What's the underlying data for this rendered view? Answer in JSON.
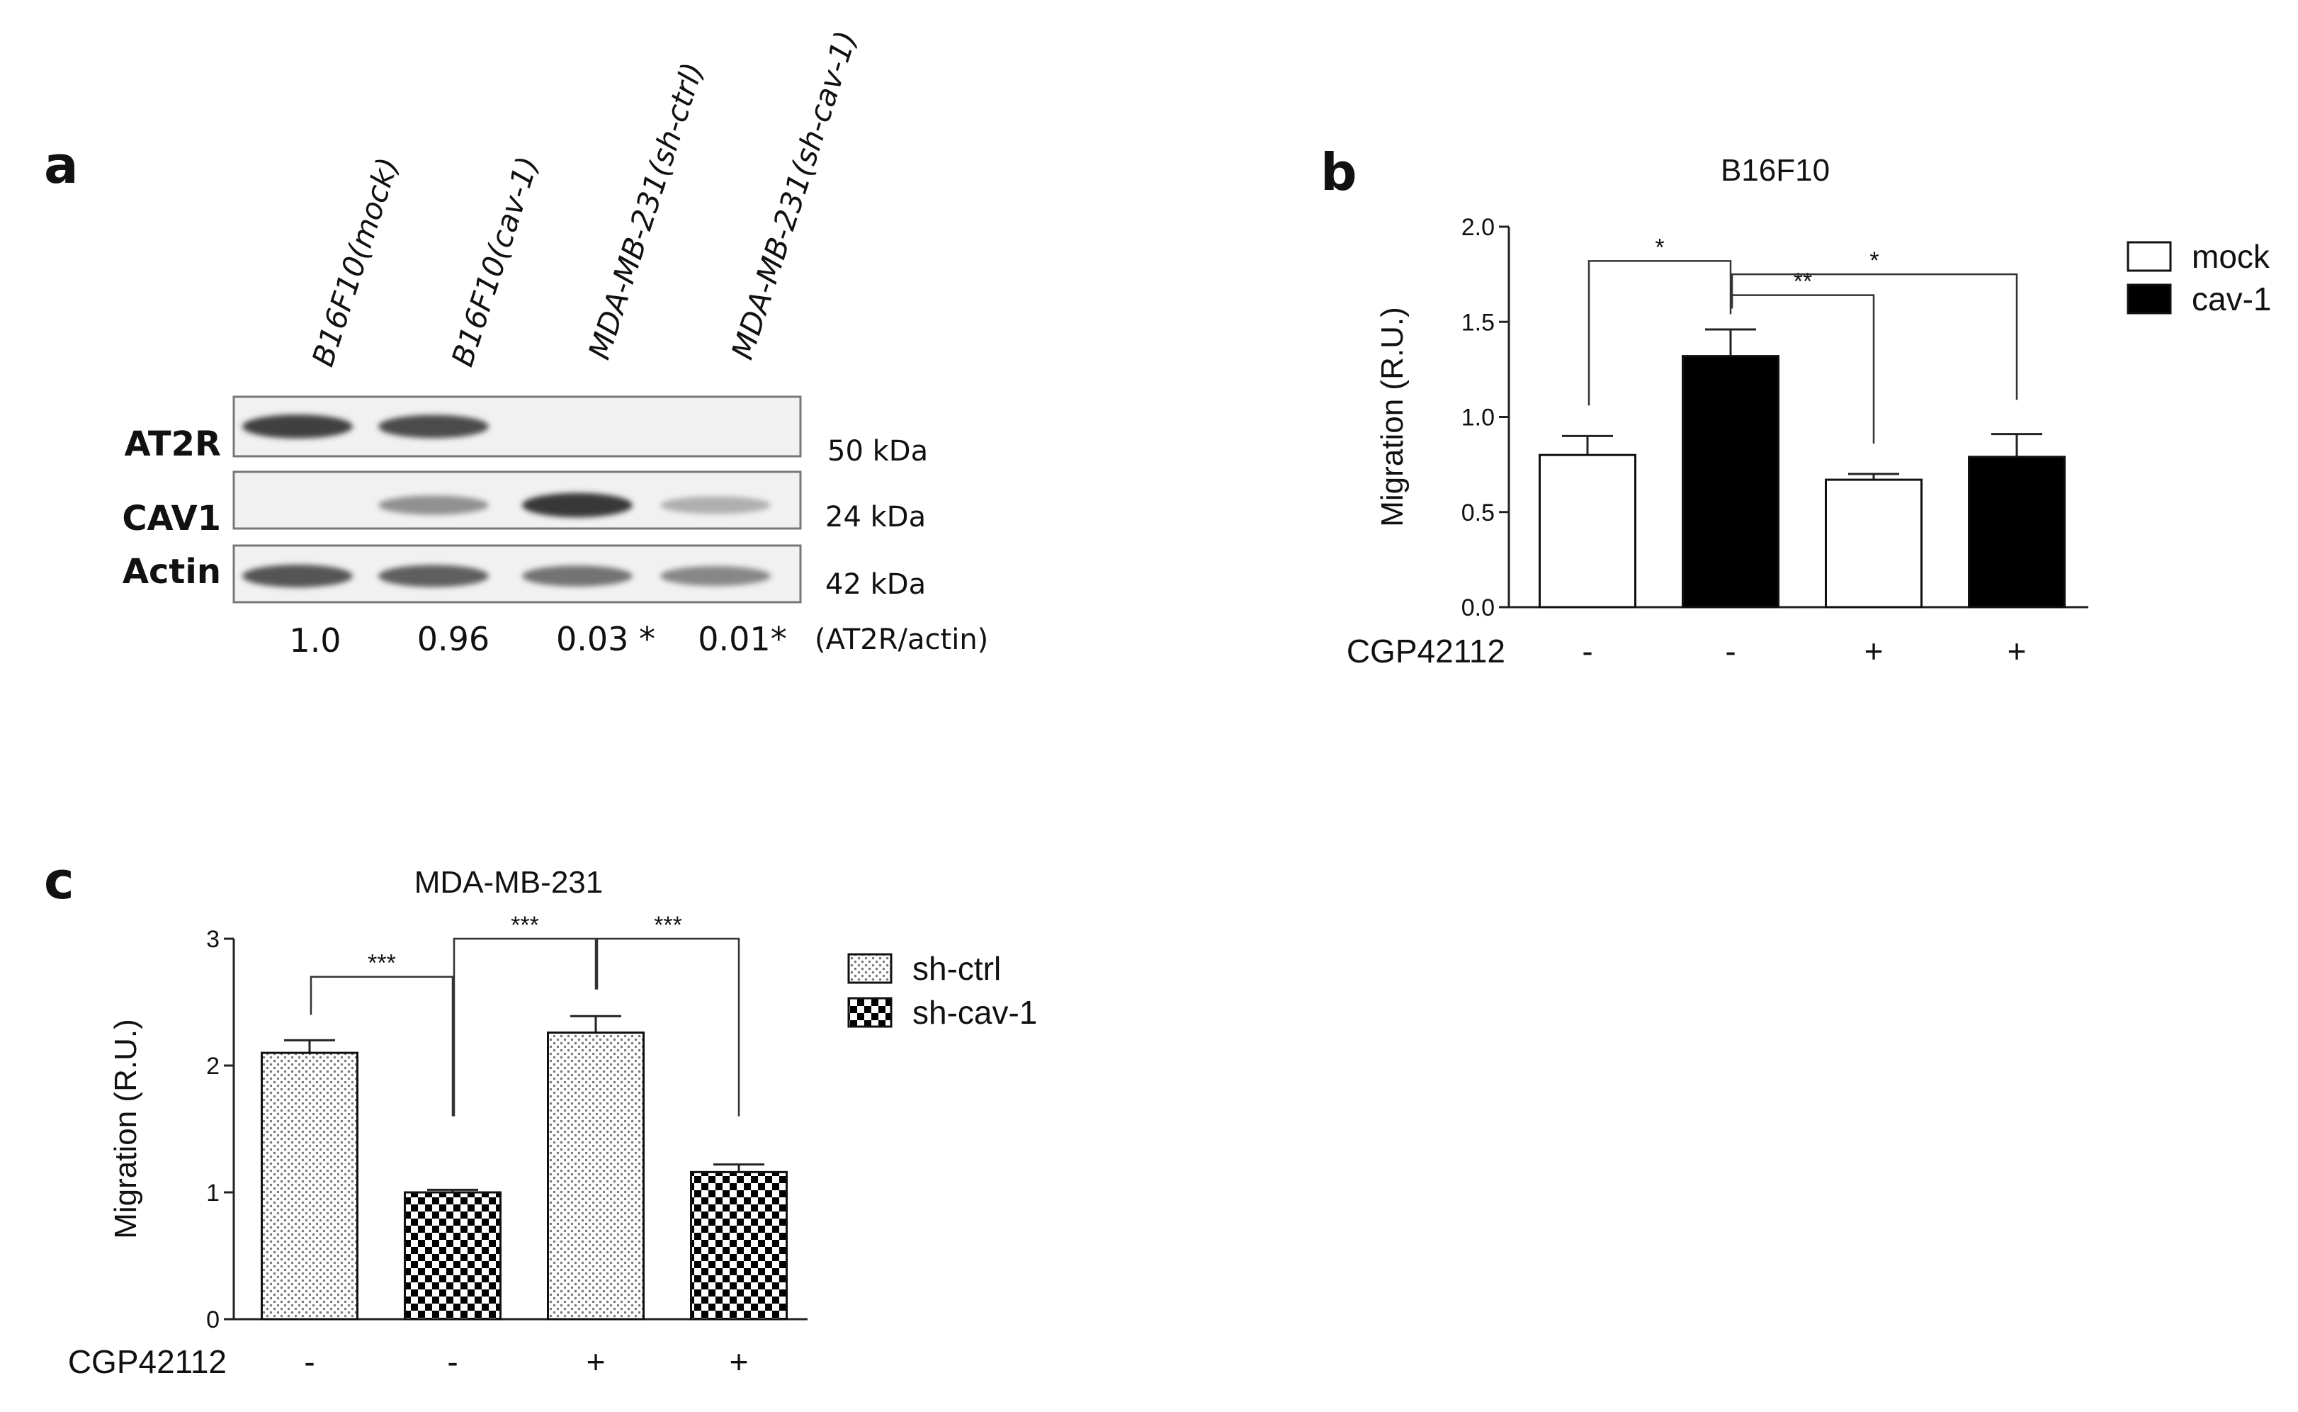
{
  "panel_a": {
    "letter": "a",
    "lane_labels": [
      "B16F10(mock)",
      "B16F10(cav-1)",
      "MDA-MB-231(sh-ctrl)",
      "MDA-MB-231(sh-cav-1)"
    ],
    "rows": [
      {
        "label": "AT2R",
        "kda": "50 kDa",
        "bands": [
          0.85,
          0.8,
          0,
          0
        ]
      },
      {
        "label": "CAV1",
        "kda": "24 kDa",
        "bands": [
          0,
          0.45,
          0.9,
          0.3
        ]
      },
      {
        "label": "Actin",
        "kda": "42 kDa",
        "bands": [
          0.75,
          0.7,
          0.6,
          0.5
        ]
      }
    ],
    "ratios": [
      "1.0",
      "0.96",
      "0.03 *",
      "0.01*"
    ],
    "ratio_label": "(AT2R/actin)"
  },
  "chart_data": [
    {
      "panel": "b",
      "type": "bar",
      "title": "B16F10",
      "ylabel": "Migration (R.U.)",
      "xlabel": "CGP42112",
      "ylim": [
        0,
        2.0
      ],
      "yticks": [
        "0.0",
        "0.5",
        "1.0",
        "1.5",
        "2.0"
      ],
      "ytick_values": [
        0,
        0.5,
        1.0,
        1.5,
        2.0
      ],
      "categories": [
        "-",
        "-",
        "+",
        "+"
      ],
      "values": [
        0.8,
        1.32,
        0.67,
        0.79
      ],
      "errors": [
        0.1,
        0.14,
        0.03,
        0.12
      ],
      "bar_series": [
        "mock",
        "cav-1",
        "mock",
        "cav-1"
      ],
      "series": [
        {
          "name": "mock",
          "fill": "#ffffff"
        },
        {
          "name": "cav-1",
          "fill": "#000000"
        }
      ],
      "legend_position": "top-right",
      "significance": [
        {
          "from": 0,
          "to": 1,
          "label": "*",
          "h1": 1.06,
          "h2": 1.54,
          "top": 1.82
        },
        {
          "from": 1,
          "to": 2,
          "label": "**",
          "h1": 1.57,
          "h2": 0.86,
          "top": 1.64
        },
        {
          "from": 1,
          "to": 3,
          "label": "*",
          "h1": 1.6,
          "h2": 1.09,
          "top": 1.75
        }
      ]
    },
    {
      "panel": "c",
      "type": "bar",
      "title": "MDA-MB-231",
      "ylabel": "Migration (R.U.)",
      "xlabel": "CGP42112",
      "ylim": [
        0,
        3
      ],
      "yticks": [
        "0",
        "1",
        "2",
        "3"
      ],
      "ytick_values": [
        0,
        1,
        2,
        3
      ],
      "categories": [
        "-",
        "-",
        "+",
        "+"
      ],
      "values": [
        2.1,
        1.0,
        2.26,
        1.16
      ],
      "errors": [
        0.1,
        0.02,
        0.13,
        0.06
      ],
      "bar_series": [
        "sh-ctrl",
        "sh-cav-1",
        "sh-ctrl",
        "sh-cav-1"
      ],
      "series": [
        {
          "name": "sh-ctrl",
          "fill": "dots"
        },
        {
          "name": "sh-cav-1",
          "fill": "checker"
        }
      ],
      "legend_position": "top-right",
      "significance": [
        {
          "from": 0,
          "to": 1,
          "label": "***",
          "h1": 2.4,
          "h2": 1.6,
          "top": 2.7
        },
        {
          "from": 1,
          "to": 2,
          "label": "***",
          "h1": 1.6,
          "h2": 2.6,
          "top": 3.0
        },
        {
          "from": 2,
          "to": 3,
          "label": "***",
          "h1": 2.6,
          "h2": 1.6,
          "top": 3.0
        }
      ]
    }
  ]
}
